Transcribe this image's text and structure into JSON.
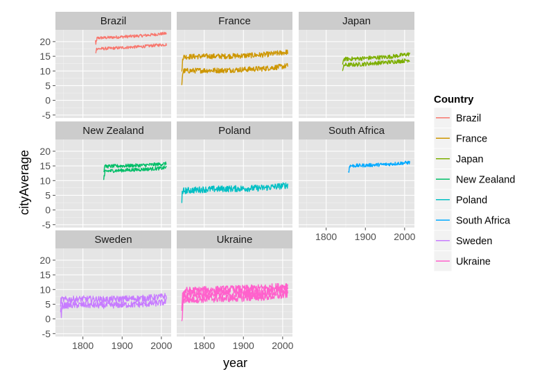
{
  "chart_data": {
    "type": "line",
    "title": "",
    "xlabel": "year",
    "ylabel": "cityAverage",
    "xlim": [
      1730,
      2025
    ],
    "ylim": [
      -6,
      24
    ],
    "x_ticks": [
      1800,
      1900,
      2000
    ],
    "y_ticks": [
      -5,
      0,
      5,
      10,
      15,
      20
    ],
    "grid": true,
    "facet_columns": 3,
    "legend": {
      "title": "Country",
      "placement": "right",
      "entries": [
        "Brazil",
        "France",
        "Japan",
        "New Zealand",
        "Poland",
        "South Africa",
        "Sweden",
        "Ukraine"
      ]
    },
    "series": [
      {
        "name": "Brazil",
        "color": "#F8766D",
        "start": 1832,
        "end": 2013,
        "bands": [
          {
            "x": [
              1832,
              1870,
              1910,
              1950,
              1990,
              2013
            ],
            "y": [
              21.2,
              21.4,
              21.7,
              22.0,
              22.5,
              22.8
            ],
            "noise": 0.5
          },
          {
            "x": [
              1832,
              1870,
              1910,
              1950,
              1990,
              2013
            ],
            "y": [
              17.5,
              17.7,
              18.0,
              18.3,
              18.8,
              19.0
            ],
            "noise": 0.5
          }
        ]
      },
      {
        "name": "France",
        "color": "#CD9600",
        "start": 1743,
        "end": 2013,
        "bands": [
          {
            "x": [
              1743,
              1800,
              1850,
              1900,
              1950,
              2000,
              2013
            ],
            "y": [
              14.8,
              15.0,
              15.0,
              15.2,
              15.5,
              16.2,
              16.5
            ],
            "noise": 0.9
          },
          {
            "x": [
              1743,
              1800,
              1850,
              1900,
              1950,
              2000,
              2013
            ],
            "y": [
              10.0,
              10.2,
              10.2,
              10.5,
              10.8,
              11.5,
              11.8
            ],
            "noise": 0.9
          }
        ]
      },
      {
        "name": "Japan",
        "color": "#7CAE00",
        "start": 1841,
        "end": 2013,
        "bands": [
          {
            "x": [
              1841,
              1880,
              1920,
              1960,
              2000,
              2013
            ],
            "y": [
              14.0,
              14.2,
              14.5,
              14.8,
              15.5,
              15.8
            ],
            "noise": 0.7
          },
          {
            "x": [
              1841,
              1880,
              1920,
              1960,
              2000,
              2013
            ],
            "y": [
              12.0,
              12.2,
              12.6,
              13.0,
              13.5,
              13.8
            ],
            "noise": 0.7
          }
        ]
      },
      {
        "name": "New Zealand",
        "color": "#00BE67",
        "start": 1853,
        "end": 2013,
        "bands": [
          {
            "x": [
              1853,
              1900,
              1950,
              2000,
              2013
            ],
            "y": [
              14.8,
              15.0,
              15.2,
              15.6,
              15.8
            ],
            "noise": 0.6
          },
          {
            "x": [
              1853,
              1900,
              1950,
              2000,
              2013
            ],
            "y": [
              13.2,
              13.5,
              13.8,
              14.2,
              14.5
            ],
            "noise": 0.6
          }
        ]
      },
      {
        "name": "Poland",
        "color": "#00BFC4",
        "start": 1743,
        "end": 2013,
        "bands": [
          {
            "x": [
              1743,
              1800,
              1850,
              1900,
              1950,
              2000,
              2013
            ],
            "y": [
              6.5,
              7.0,
              7.2,
              7.3,
              7.5,
              8.2,
              8.5
            ],
            "noise": 1.1
          }
        ]
      },
      {
        "name": "South Africa",
        "color": "#00A9FF",
        "start": 1857,
        "end": 2013,
        "bands": [
          {
            "x": [
              1857,
              1900,
              1950,
              2000,
              2013
            ],
            "y": [
              15.0,
              15.2,
              15.5,
              16.0,
              16.2
            ],
            "noise": 0.6
          }
        ]
      },
      {
        "name": "Sweden",
        "color": "#C77CFF",
        "start": 1743,
        "end": 2013,
        "bands": [
          {
            "x": [
              1743,
              1800,
              1850,
              1900,
              1950,
              2000,
              2013
            ],
            "y": [
              6.5,
              6.8,
              6.6,
              6.8,
              7.0,
              7.5,
              7.8
            ],
            "noise": 1.1
          },
          {
            "x": [
              1743,
              1800,
              1850,
              1900,
              1950,
              2000,
              2013
            ],
            "y": [
              4.5,
              4.8,
              4.6,
              4.8,
              5.0,
              5.5,
              5.8
            ],
            "noise": 1.1
          }
        ]
      },
      {
        "name": "Ukraine",
        "color": "#FF61CC",
        "start": 1743,
        "end": 2013,
        "bands": [
          {
            "x": [
              1743,
              1800,
              1850,
              1900,
              1950,
              2000,
              2013
            ],
            "y": [
              9.5,
              9.8,
              10.0,
              10.2,
              10.5,
              11.0,
              11.5
            ],
            "noise": 1.3
          },
          {
            "x": [
              1743,
              1800,
              1850,
              1900,
              1950,
              2000,
              2013
            ],
            "y": [
              8.0,
              8.3,
              8.5,
              8.7,
              9.0,
              9.5,
              10.0
            ],
            "noise": 1.3
          },
          {
            "x": [
              1743,
              1800,
              1850,
              1900,
              1950,
              2000,
              2013
            ],
            "y": [
              6.5,
              6.8,
              7.0,
              7.2,
              7.5,
              8.0,
              8.5
            ],
            "noise": 1.3
          }
        ]
      }
    ]
  }
}
